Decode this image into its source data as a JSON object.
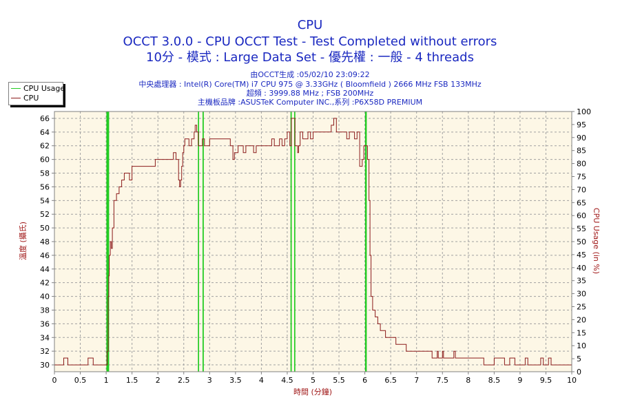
{
  "header": {
    "title": "CPU",
    "subtitle1": "OCCT 3.0.0 - CPU OCCT Test - Test Completed without errors",
    "subtitle2": "10分 - 模式 : Large Data Set - 優先權 : 一般 - 4 threads",
    "info": [
      "由OCCT生成 :05/02/10 23:09:22",
      "中央處理器 : Intel(R) Core(TM) i7 CPU 975 @ 3.33GHz ( Bloomfield ) 2666 MHz FSB 133MHz",
      "超頻 : 3999.88 MHz ; FSB 200MHz",
      "主機板品牌 :ASUSTeK Computer INC.,系列 :P6X58D PREMIUM"
    ]
  },
  "colors": {
    "title": "#1a28c0",
    "cpu_usage": "#22cc22",
    "cpu_temp": "#8b1a1a",
    "plot_bg": "#fdf7e6",
    "grid": "#a0a0a0",
    "axis_label": "#a01818"
  },
  "chart_data": {
    "type": "line",
    "xlabel": "時間 (分鐘)",
    "ylabel_left": "溫度 (攝氏)",
    "ylabel_right": "CPU Usage (in %)",
    "xlim": [
      0,
      10
    ],
    "ylim_left": [
      29,
      67
    ],
    "ylim_right": [
      0,
      100
    ],
    "x_ticks": [
      "0",
      "0.5",
      "1",
      "1.5",
      "2",
      "2.5",
      "3",
      "3.5",
      "4",
      "4.5",
      "5",
      "5.5",
      "6",
      "6.5",
      "7",
      "7.5",
      "8",
      "8.5",
      "9",
      "9.5",
      "10"
    ],
    "y_left_ticks": [
      "30",
      "32",
      "34",
      "36",
      "38",
      "40",
      "42",
      "44",
      "46",
      "48",
      "50",
      "52",
      "54",
      "56",
      "58",
      "60",
      "62",
      "64",
      "66"
    ],
    "y_right_ticks": [
      "0",
      "5",
      "10",
      "15",
      "20",
      "25",
      "30",
      "35",
      "40",
      "45",
      "50",
      "55",
      "60",
      "65",
      "70",
      "75",
      "80",
      "85",
      "90",
      "95",
      "100"
    ],
    "legend": [
      "CPU Usage",
      "CPU"
    ],
    "series": [
      {
        "name": "CPU Usage",
        "axis": "right",
        "x": [
          0,
          1.0,
          1.01,
          1.02,
          1.03,
          1.04,
          1.05,
          1.06,
          2.77,
          2.78,
          2.79,
          2.8,
          2.81,
          2.86,
          2.87,
          2.88,
          2.89,
          4.56,
          4.57,
          4.58,
          4.59,
          4.6,
          4.63,
          4.64,
          4.65,
          4.66,
          6.0,
          6.01,
          6.02,
          6.03,
          6.04,
          10
        ],
        "y": [
          0,
          0,
          100,
          0,
          100,
          0,
          100,
          100,
          100,
          0,
          100,
          100,
          100,
          100,
          0,
          100,
          100,
          100,
          0,
          100,
          100,
          100,
          100,
          0,
          100,
          100,
          100,
          0,
          100,
          0,
          0,
          0
        ]
      },
      {
        "name": "CPU",
        "axis": "left",
        "x": [
          0,
          0.15,
          0.18,
          0.23,
          0.26,
          0.6,
          0.65,
          0.7,
          0.75,
          1.0,
          1.02,
          1.04,
          1.05,
          1.06,
          1.08,
          1.1,
          1.12,
          1.15,
          1.2,
          1.25,
          1.3,
          1.35,
          1.4,
          1.45,
          1.5,
          1.55,
          1.6,
          1.65,
          1.7,
          1.8,
          1.9,
          1.95,
          2.0,
          2.1,
          2.2,
          2.3,
          2.35,
          2.4,
          2.42,
          2.44,
          2.46,
          2.48,
          2.5,
          2.52,
          2.55,
          2.6,
          2.65,
          2.7,
          2.72,
          2.75,
          2.78,
          2.8,
          2.83,
          2.86,
          2.9,
          2.95,
          3.0,
          3.1,
          3.2,
          3.3,
          3.4,
          3.45,
          3.48,
          3.5,
          3.55,
          3.6,
          3.65,
          3.7,
          3.75,
          3.8,
          3.85,
          3.9,
          3.95,
          4.0,
          4.1,
          4.2,
          4.25,
          4.3,
          4.35,
          4.4,
          4.45,
          4.5,
          4.55,
          4.58,
          4.6,
          4.65,
          4.7,
          4.72,
          4.75,
          4.8,
          4.85,
          4.9,
          4.95,
          5.0,
          5.1,
          5.2,
          5.3,
          5.35,
          5.4,
          5.45,
          5.5,
          5.55,
          5.6,
          5.65,
          5.7,
          5.75,
          5.8,
          5.85,
          5.9,
          5.95,
          5.98,
          6.0,
          6.02,
          6.05,
          6.08,
          6.1,
          6.12,
          6.15,
          6.2,
          6.25,
          6.3,
          6.35,
          6.4,
          6.5,
          6.6,
          6.7,
          6.8,
          7.0,
          7.3,
          7.4,
          7.42,
          7.45,
          7.5,
          7.52,
          7.55,
          7.6,
          7.7,
          7.72,
          7.75,
          8.0,
          8.3,
          8.35,
          8.5,
          8.55,
          8.7,
          8.75,
          8.8,
          8.9,
          8.95,
          9.1,
          9.15,
          9.3,
          9.35,
          9.4,
          9.45,
          9.5,
          9.55,
          9.6,
          9.65,
          10
        ],
        "y": [
          30,
          30,
          31,
          31,
          30,
          30,
          31,
          31,
          30,
          30,
          32,
          40,
          43,
          46,
          48,
          47,
          50,
          54,
          55,
          56,
          57,
          58,
          58,
          57,
          59,
          59,
          59,
          59,
          59,
          59,
          59,
          60,
          60,
          60,
          60,
          61,
          60,
          57,
          56,
          57,
          59,
          61,
          62,
          63,
          63,
          62,
          63,
          64,
          65,
          64,
          62,
          62,
          62,
          63,
          62,
          62,
          63,
          63,
          63,
          63,
          62,
          60,
          61,
          61,
          62,
          62,
          61,
          62,
          62,
          62,
          61,
          62,
          62,
          62,
          62,
          63,
          62,
          62,
          63,
          62,
          63,
          64,
          62,
          66,
          66,
          62,
          61,
          62,
          64,
          63,
          63,
          64,
          63,
          64,
          64,
          64,
          64,
          65,
          66,
          64,
          64,
          64,
          64,
          63,
          64,
          64,
          63,
          64,
          59,
          60,
          62,
          62,
          62,
          60,
          54,
          46,
          40,
          38,
          37,
          36,
          35,
          35,
          34,
          34,
          33,
          33,
          32,
          32,
          31,
          32,
          31,
          31,
          32,
          31,
          31,
          31,
          31,
          32,
          31,
          31,
          30,
          30,
          31,
          31,
          30,
          30,
          31,
          30,
          30,
          31,
          30,
          30,
          30,
          31,
          30,
          30,
          31,
          30,
          30,
          30
        ]
      }
    ]
  }
}
